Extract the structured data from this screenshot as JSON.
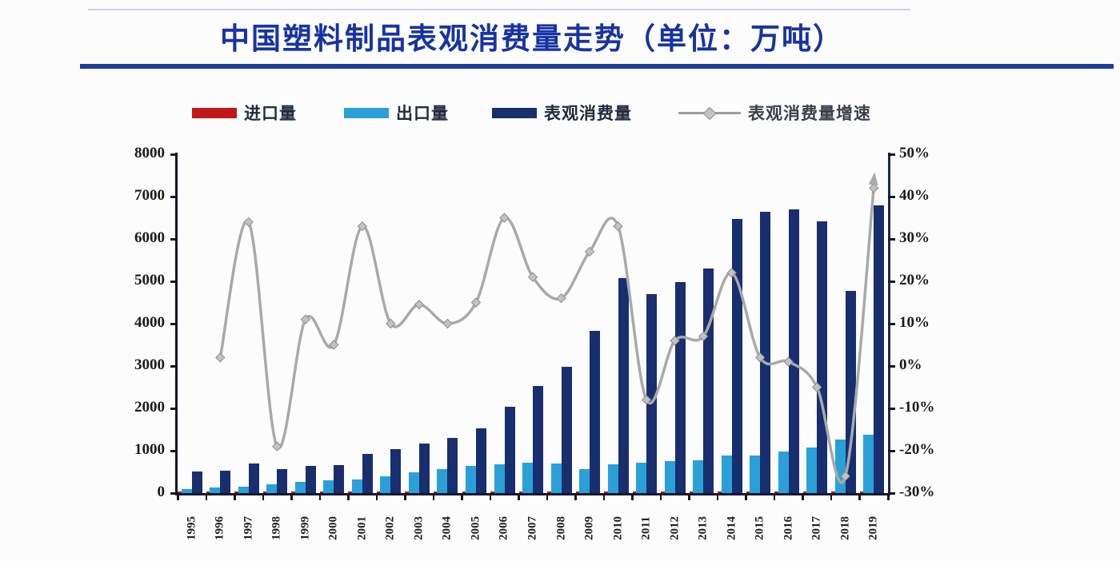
{
  "title": "中国塑料制品表观消费量走势（单位：万吨）",
  "legend": {
    "items": [
      {
        "label": "进口量",
        "swatch": "bar",
        "color": "#c01818"
      },
      {
        "label": "出口量",
        "swatch": "bar",
        "color": "#2aa0d8"
      },
      {
        "label": "表观消费量",
        "swatch": "bar",
        "color": "#192e6e"
      },
      {
        "label": "表观消费量增速",
        "swatch": "line",
        "color": "#9d9d9d"
      }
    ]
  },
  "colors": {
    "title_navy": "#1733a3",
    "rule_navy": "#1e3c9e",
    "import_red": "#c01818",
    "export_blue": "#2aa0d8",
    "consumption_navy": "#192e6e",
    "growth_gray": "#a9a9a9",
    "axis_dark": "#15172b"
  },
  "chart_data": {
    "type": "bar",
    "combo": "bar+line",
    "title": "中国塑料制品表观消费量走势",
    "unit": "万吨",
    "categories": [
      "1995",
      "1996",
      "1997",
      "1998",
      "1999",
      "2000",
      "2001",
      "2002",
      "2003",
      "2004",
      "2005",
      "2006",
      "2007",
      "2008",
      "2009",
      "2010",
      "2011",
      "2012",
      "2013",
      "2014",
      "2015",
      "2016",
      "2017",
      "2018",
      "2019"
    ],
    "series": [
      {
        "name": "进口量",
        "kind": "bar",
        "axis": "left",
        "color": "#c01818",
        "values": [
          30,
          30,
          30,
          30,
          30,
          30,
          30,
          30,
          30,
          30,
          30,
          30,
          30,
          30,
          30,
          30,
          30,
          30,
          30,
          30,
          30,
          30,
          30,
          30,
          30
        ]
      },
      {
        "name": "出口量",
        "kind": "bar",
        "axis": "left",
        "color": "#2aa0d8",
        "values": [
          100,
          130,
          155,
          210,
          265,
          305,
          325,
          400,
          495,
          570,
          645,
          680,
          720,
          700,
          570,
          685,
          720,
          760,
          780,
          890,
          895,
          990,
          1085,
          1270,
          1370
        ]
      },
      {
        "name": "表观消费量",
        "kind": "bar",
        "axis": "left",
        "color": "#192e6e",
        "values": [
          510,
          530,
          705,
          570,
          645,
          665,
          930,
          1030,
          1180,
          1310,
          1520,
          2035,
          2530,
          2990,
          3840,
          5080,
          4700,
          4980,
          5305,
          6480,
          6635,
          6690,
          6425,
          4770,
          6790
        ]
      },
      {
        "name": "表观消费量增速",
        "kind": "line",
        "axis": "right",
        "color": "#a9a9a9",
        "values": [
          null,
          2,
          34,
          -19,
          11,
          5,
          33,
          10,
          14.5,
          10,
          15,
          35,
          21,
          16,
          27,
          33,
          -8,
          6,
          7,
          22,
          2,
          1,
          -5,
          -26,
          42
        ]
      }
    ],
    "left_axis": {
      "min": 0,
      "max": 8000,
      "ticks": [
        "8000",
        "7000",
        "6000",
        "5000",
        "4000",
        "3000",
        "2000",
        "1000",
        "0"
      ],
      "tick_values": [
        8000,
        7000,
        6000,
        5000,
        4000,
        3000,
        2000,
        1000,
        0
      ]
    },
    "right_axis": {
      "min": -30,
      "max": 50,
      "ticks": [
        "50%",
        "40%",
        "30%",
        "20%",
        "10%",
        "0%",
        "-10%",
        "-20%",
        "-30%"
      ],
      "tick_values": [
        50,
        40,
        30,
        20,
        10,
        0,
        -10,
        -20,
        -30
      ]
    },
    "grid": false,
    "legend_position": "top"
  }
}
